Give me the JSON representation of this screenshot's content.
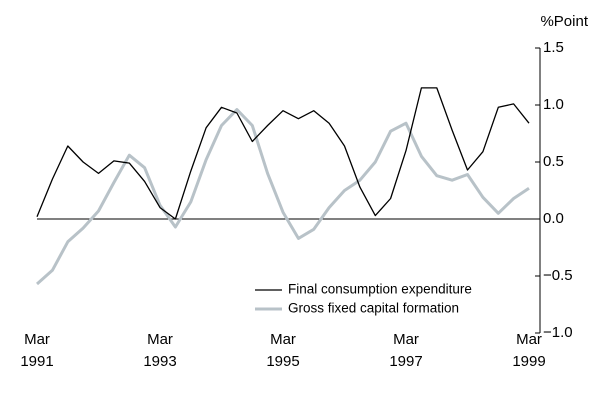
{
  "chart_data": {
    "type": "line",
    "y_axis_label": "%Point",
    "categories": [
      "Mar 1991",
      null,
      null,
      null,
      null,
      null,
      null,
      null,
      "Mar 1993",
      null,
      null,
      null,
      null,
      null,
      null,
      null,
      "Mar 1995",
      null,
      null,
      null,
      null,
      null,
      null,
      null,
      "Mar 1997",
      null,
      null,
      null,
      null,
      null,
      null,
      null,
      "Mar 1999"
    ],
    "series": [
      {
        "name": "Final consumption expenditure",
        "color": "#000000",
        "values": [
          0.02,
          0.35,
          0.64,
          0.5,
          0.4,
          0.51,
          0.49,
          0.33,
          0.1,
          0.0,
          0.42,
          0.8,
          0.98,
          0.93,
          0.68,
          0.82,
          0.95,
          0.88,
          0.95,
          0.84,
          0.64,
          0.28,
          0.03,
          0.18,
          0.6,
          1.15,
          1.15,
          0.78,
          0.43,
          0.59,
          0.98,
          1.01,
          0.84
        ]
      },
      {
        "name": "Gross fixed capital formation",
        "color": "#b8c2c8",
        "values": [
          -0.57,
          -0.45,
          -0.2,
          -0.08,
          0.07,
          0.32,
          0.56,
          0.45,
          0.12,
          -0.07,
          0.15,
          0.52,
          0.82,
          0.96,
          0.82,
          0.4,
          0.06,
          -0.17,
          -0.09,
          0.1,
          0.25,
          0.34,
          0.5,
          0.77,
          0.84,
          0.55,
          0.38,
          0.34,
          0.39,
          0.19,
          0.05,
          0.18,
          0.27
        ]
      }
    ],
    "ylim": [
      -1.0,
      1.5
    ],
    "yticks": [
      {
        "value": -1.0,
        "label": "−1.0"
      },
      {
        "value": -0.5,
        "label": "−0.5"
      },
      {
        "value": 0,
        "label": "0.0"
      },
      {
        "value": 0.5,
        "label": "0.5"
      },
      {
        "value": 1.0,
        "label": "1.0"
      },
      1.5
    ],
    "legend": "lower-center"
  }
}
